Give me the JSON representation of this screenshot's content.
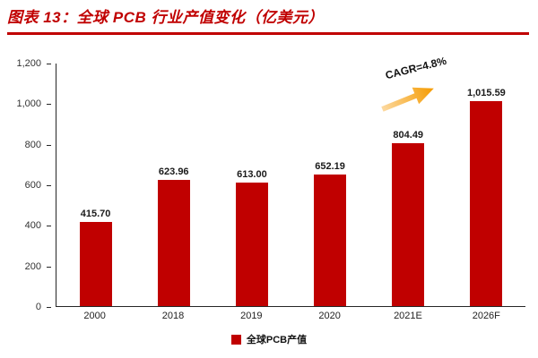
{
  "header": {
    "title": "图表 13：全球 PCB 行业产值变化（亿美元）",
    "accent": "#C00000"
  },
  "chart_data": {
    "type": "bar",
    "title": "全球 PCB 行业产值变化（亿美元）",
    "categories": [
      "2000",
      "2018",
      "2019",
      "2020",
      "2021E",
      "2026F"
    ],
    "values": [
      415.7,
      623.96,
      613.0,
      652.19,
      804.49,
      1015.59
    ],
    "value_labels": [
      "415.70",
      "623.96",
      "613.00",
      "652.19",
      "804.49",
      "1,015.59"
    ],
    "series": [
      {
        "name": "全球PCB产值",
        "values": [
          415.7,
          623.96,
          613.0,
          652.19,
          804.49,
          1015.59
        ]
      }
    ],
    "xlabel": "",
    "ylabel": "",
    "ylim": [
      0,
      1200
    ],
    "ytick_step": 200,
    "grid": false,
    "legend_position": "bottom",
    "annotation": "CAGR=4.8%",
    "legend": [
      "全球PCB产值"
    ],
    "bar_color": "#C00000",
    "arrow_color_start": "#FCD9A0",
    "arrow_color_end": "#F59B00"
  }
}
